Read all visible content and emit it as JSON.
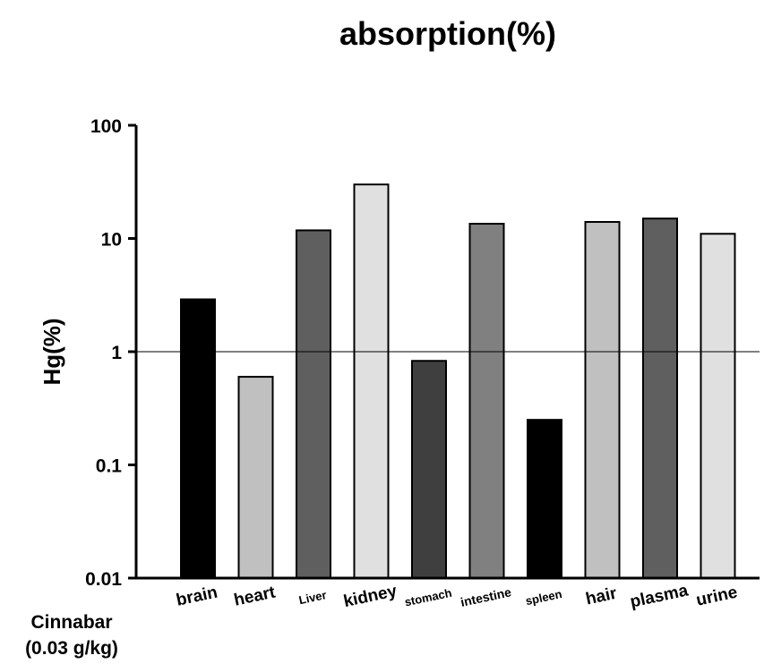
{
  "chart_data": {
    "type": "bar",
    "title": "absorption(%)",
    "ylabel": "Hg(%)",
    "xlabel_line1": "Cinnabar",
    "xlabel_line2": "(0.03 g/kg)",
    "yscale": "log",
    "ylim": [
      0.01,
      100
    ],
    "yticks": [
      "0.01",
      "0.1",
      "1",
      "10",
      "100"
    ],
    "reference_line": 1,
    "grid": false,
    "categories": [
      "brain",
      "heart",
      "Liver",
      "kidney",
      "stomach",
      "intestine",
      "spleen",
      "hair",
      "plasma",
      "urine"
    ],
    "values": [
      2.9,
      0.6,
      11.8,
      30,
      0.83,
      13.5,
      0.25,
      14,
      15,
      11
    ],
    "colors": [
      "#000000",
      "#c0c0c0",
      "#5f5f5f",
      "#e0e0e0",
      "#3f3f3f",
      "#808080",
      "#000000",
      "#c0c0c0",
      "#5f5f5f",
      "#e0e0e0"
    ]
  }
}
